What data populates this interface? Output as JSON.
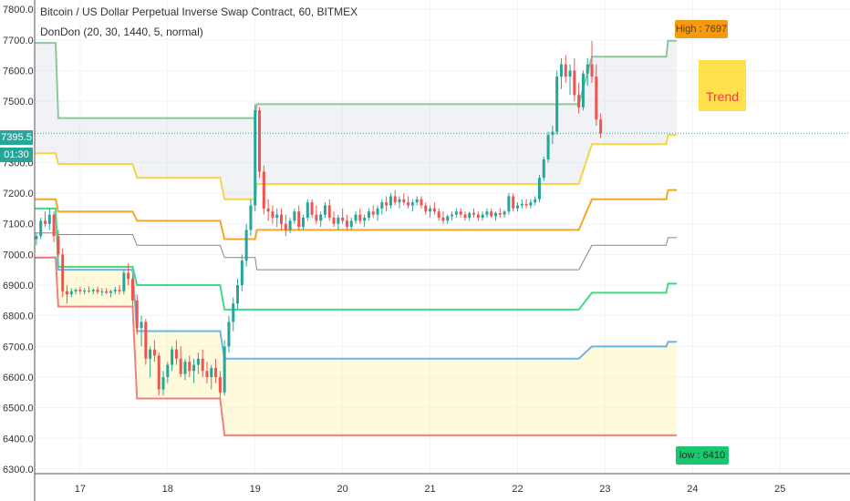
{
  "header": {
    "title": "Bitcoin / US Dollar Perpetual Inverse Swap Contract, 60, BITMEX",
    "indicator": "DonDon (20, 30, 1440, 5, normal)"
  },
  "annotations": {
    "high_label": "High : 7697",
    "low_label": "low : 6410",
    "trend_label": "Trend"
  },
  "price_tag": "7395.5",
  "time_tag": "01:30",
  "colors": {
    "up": "#26a69a",
    "down": "#ef5350",
    "high_band": "#8fc79b",
    "low_band": "#f08080",
    "band_yellow": "#f5d547",
    "band_orange": "#f5a623",
    "band_green": "#3ddc84",
    "band_blue": "#6bb5e0",
    "mid_gray": "#888888",
    "last_price_line": "#26a69a"
  },
  "chart_data": {
    "type": "candlestick",
    "y_ticks": [
      "7800.0",
      "7700.0",
      "7600.0",
      "7500.0",
      "7300.0",
      "7200.0",
      "7100.0",
      "7000.0",
      "6900.0",
      "6800.0",
      "6700.0",
      "6600.0",
      "6500.0",
      "6400.0",
      "6300.0"
    ],
    "x_ticks": [
      "17",
      "18",
      "19",
      "20",
      "21",
      "22",
      "23",
      "24",
      "25"
    ],
    "x_tick_values": [
      17,
      18,
      19,
      20,
      21,
      22,
      23,
      24,
      25
    ],
    "ylim": [
      6285,
      7830
    ],
    "xlim": [
      16.48,
      25.8
    ],
    "last_price": 7395.5,
    "high": 7697,
    "low": 6410,
    "bands": [
      {
        "name": "outer_high",
        "color": "#8fc79b",
        "points": [
          [
            16.48,
            7690
          ],
          [
            16.72,
            7690
          ],
          [
            16.75,
            7445
          ],
          [
            19.0,
            7445
          ],
          [
            19.02,
            7490
          ],
          [
            22.7,
            7490
          ],
          [
            22.85,
            7645
          ],
          [
            23.7,
            7645
          ],
          [
            23.72,
            7697
          ],
          [
            23.82,
            7697
          ]
        ]
      },
      {
        "name": "yellow",
        "color": "#f5d547",
        "points": [
          [
            16.48,
            7330
          ],
          [
            16.72,
            7330
          ],
          [
            16.75,
            7295
          ],
          [
            17.6,
            7295
          ],
          [
            17.65,
            7250
          ],
          [
            18.6,
            7250
          ],
          [
            18.65,
            7180
          ],
          [
            19.0,
            7180
          ],
          [
            19.02,
            7230
          ],
          [
            22.7,
            7230
          ],
          [
            22.85,
            7360
          ],
          [
            23.7,
            7360
          ],
          [
            23.72,
            7390
          ],
          [
            23.82,
            7390
          ]
        ]
      },
      {
        "name": "orange",
        "color": "#f5a623",
        "points": [
          [
            16.48,
            7180
          ],
          [
            16.72,
            7180
          ],
          [
            16.75,
            7140
          ],
          [
            17.6,
            7140
          ],
          [
            17.65,
            7110
          ],
          [
            18.6,
            7110
          ],
          [
            18.65,
            7050
          ],
          [
            19.0,
            7050
          ],
          [
            19.02,
            7080
          ],
          [
            22.7,
            7080
          ],
          [
            22.85,
            7180
          ],
          [
            23.7,
            7180
          ],
          [
            23.72,
            7210
          ],
          [
            23.82,
            7210
          ]
        ]
      },
      {
        "name": "gray",
        "color": "#888888",
        "points": [
          [
            16.48,
            7070
          ],
          [
            16.72,
            7070
          ],
          [
            16.75,
            7065
          ],
          [
            17.6,
            7065
          ],
          [
            17.65,
            7030
          ],
          [
            18.6,
            7030
          ],
          [
            18.65,
            6990
          ],
          [
            19.0,
            6990
          ],
          [
            19.02,
            6950
          ],
          [
            22.7,
            6950
          ],
          [
            22.85,
            7030
          ],
          [
            23.7,
            7030
          ],
          [
            23.72,
            7055
          ],
          [
            23.82,
            7055
          ]
        ]
      },
      {
        "name": "green",
        "color": "#3ddc84",
        "points": [
          [
            16.48,
            7150
          ],
          [
            16.72,
            7150
          ],
          [
            16.75,
            6960
          ],
          [
            17.6,
            6960
          ],
          [
            17.65,
            6900
          ],
          [
            18.6,
            6900
          ],
          [
            18.65,
            6820
          ],
          [
            19.0,
            6820
          ],
          [
            19.02,
            6820
          ],
          [
            22.7,
            6820
          ],
          [
            22.85,
            6875
          ],
          [
            23.7,
            6875
          ],
          [
            23.72,
            6905
          ],
          [
            23.82,
            6905
          ]
        ]
      },
      {
        "name": "blue",
        "color": "#6bb5e0",
        "points": [
          [
            16.48,
            6990
          ],
          [
            16.72,
            6990
          ],
          [
            16.75,
            6950
          ],
          [
            17.6,
            6950
          ],
          [
            17.65,
            6750
          ],
          [
            18.6,
            6750
          ],
          [
            18.65,
            6660
          ],
          [
            19.0,
            6660
          ],
          [
            19.02,
            6660
          ],
          [
            22.7,
            6660
          ],
          [
            22.85,
            6700
          ],
          [
            23.7,
            6700
          ],
          [
            23.72,
            6715
          ],
          [
            23.82,
            6715
          ]
        ]
      },
      {
        "name": "outer_low",
        "color": "#f08080",
        "points": [
          [
            16.48,
            6990
          ],
          [
            16.72,
            6990
          ],
          [
            16.75,
            6830
          ],
          [
            17.6,
            6830
          ],
          [
            17.65,
            6530
          ],
          [
            18.6,
            6530
          ],
          [
            18.65,
            6410
          ],
          [
            23.82,
            6410
          ]
        ]
      }
    ],
    "candles": [
      [
        16.5,
        7050,
        7070,
        7030,
        7060
      ],
      [
        16.55,
        7060,
        7120,
        7050,
        7110
      ],
      [
        16.6,
        7110,
        7140,
        7090,
        7100
      ],
      [
        16.65,
        7100,
        7150,
        7080,
        7130
      ],
      [
        16.7,
        7130,
        7140,
        7040,
        7060
      ],
      [
        16.75,
        7060,
        7080,
        6990,
        7000
      ],
      [
        16.8,
        7000,
        7020,
        6860,
        6880
      ],
      [
        16.85,
        6880,
        6900,
        6840,
        6870
      ],
      [
        16.9,
        6870,
        6890,
        6860,
        6880
      ],
      [
        16.95,
        6880,
        6890,
        6870,
        6885
      ],
      [
        17.0,
        6885,
        6895,
        6870,
        6880
      ],
      [
        17.05,
        6880,
        6890,
        6870,
        6882
      ],
      [
        17.1,
        6882,
        6895,
        6875,
        6880
      ],
      [
        17.15,
        6880,
        6890,
        6870,
        6885
      ],
      [
        17.2,
        6885,
        6895,
        6870,
        6878
      ],
      [
        17.25,
        6878,
        6890,
        6865,
        6880
      ],
      [
        17.3,
        6880,
        6890,
        6870,
        6875
      ],
      [
        17.35,
        6875,
        6885,
        6860,
        6880
      ],
      [
        17.4,
        6880,
        6895,
        6870,
        6885
      ],
      [
        17.45,
        6885,
        6900,
        6870,
        6880
      ],
      [
        17.5,
        6880,
        6950,
        6870,
        6940
      ],
      [
        17.55,
        6940,
        6970,
        6900,
        6920
      ],
      [
        17.6,
        6920,
        6930,
        6830,
        6850
      ],
      [
        17.65,
        6850,
        6870,
        6740,
        6760
      ],
      [
        17.7,
        6760,
        6800,
        6700,
        6780
      ],
      [
        17.75,
        6780,
        6790,
        6640,
        6660
      ],
      [
        17.8,
        6660,
        6700,
        6600,
        6690
      ],
      [
        17.85,
        6690,
        6720,
        6650,
        6670
      ],
      [
        17.9,
        6670,
        6680,
        6540,
        6560
      ],
      [
        17.95,
        6560,
        6620,
        6540,
        6600
      ],
      [
        18.0,
        6600,
        6650,
        6580,
        6640
      ],
      [
        18.05,
        6640,
        6700,
        6620,
        6690
      ],
      [
        18.1,
        6690,
        6720,
        6640,
        6660
      ],
      [
        18.15,
        6660,
        6700,
        6600,
        6610
      ],
      [
        18.2,
        6610,
        6660,
        6590,
        6650
      ],
      [
        18.25,
        6650,
        6670,
        6600,
        6620
      ],
      [
        18.3,
        6620,
        6660,
        6580,
        6640
      ],
      [
        18.35,
        6640,
        6680,
        6610,
        6660
      ],
      [
        18.4,
        6660,
        6690,
        6600,
        6620
      ],
      [
        18.45,
        6620,
        6650,
        6580,
        6600
      ],
      [
        18.5,
        6600,
        6640,
        6560,
        6630
      ],
      [
        18.55,
        6630,
        6660,
        6580,
        6600
      ],
      [
        18.6,
        6600,
        6620,
        6530,
        6550
      ],
      [
        18.65,
        6550,
        6720,
        6540,
        6700
      ],
      [
        18.7,
        6700,
        6800,
        6680,
        6780
      ],
      [
        18.75,
        6780,
        6860,
        6750,
        6840
      ],
      [
        18.8,
        6840,
        6920,
        6820,
        6900
      ],
      [
        18.85,
        6900,
        7000,
        6880,
        6980
      ],
      [
        18.9,
        6980,
        7100,
        6960,
        7080
      ],
      [
        18.95,
        7080,
        7180,
        7060,
        7160
      ],
      [
        19.0,
        7160,
        7490,
        7140,
        7470
      ],
      [
        19.05,
        7470,
        7480,
        7250,
        7270
      ],
      [
        19.1,
        7270,
        7290,
        7130,
        7150
      ],
      [
        19.15,
        7150,
        7180,
        7110,
        7140
      ],
      [
        19.2,
        7140,
        7160,
        7100,
        7120
      ],
      [
        19.25,
        7120,
        7150,
        7090,
        7130
      ],
      [
        19.3,
        7130,
        7150,
        7080,
        7100
      ],
      [
        19.35,
        7100,
        7130,
        7060,
        7080
      ],
      [
        19.4,
        7080,
        7120,
        7070,
        7110
      ],
      [
        19.45,
        7110,
        7150,
        7100,
        7140
      ],
      [
        19.5,
        7140,
        7160,
        7080,
        7090
      ],
      [
        19.55,
        7090,
        7130,
        7080,
        7120
      ],
      [
        19.6,
        7120,
        7180,
        7110,
        7170
      ],
      [
        19.65,
        7170,
        7180,
        7120,
        7130
      ],
      [
        19.7,
        7130,
        7160,
        7100,
        7110
      ],
      [
        19.75,
        7110,
        7140,
        7090,
        7130
      ],
      [
        19.8,
        7130,
        7170,
        7120,
        7160
      ],
      [
        19.85,
        7160,
        7180,
        7110,
        7120
      ],
      [
        19.9,
        7120,
        7140,
        7090,
        7100
      ],
      [
        19.95,
        7100,
        7130,
        7080,
        7120
      ],
      [
        20.0,
        7120,
        7150,
        7100,
        7110
      ],
      [
        20.05,
        7110,
        7130,
        7080,
        7090
      ],
      [
        20.1,
        7090,
        7120,
        7080,
        7110
      ],
      [
        20.15,
        7110,
        7140,
        7100,
        7130
      ],
      [
        20.2,
        7130,
        7150,
        7100,
        7110
      ],
      [
        20.25,
        7110,
        7130,
        7090,
        7120
      ],
      [
        20.3,
        7120,
        7150,
        7110,
        7140
      ],
      [
        20.35,
        7140,
        7160,
        7120,
        7130
      ],
      [
        20.4,
        7130,
        7160,
        7110,
        7150
      ],
      [
        20.45,
        7150,
        7180,
        7130,
        7170
      ],
      [
        20.5,
        7170,
        7190,
        7140,
        7160
      ],
      [
        20.55,
        7160,
        7200,
        7150,
        7190
      ],
      [
        20.6,
        7190,
        7210,
        7160,
        7170
      ],
      [
        20.65,
        7170,
        7190,
        7150,
        7180
      ],
      [
        20.7,
        7180,
        7200,
        7160,
        7170
      ],
      [
        20.75,
        7170,
        7190,
        7150,
        7160
      ],
      [
        20.8,
        7160,
        7180,
        7140,
        7170
      ],
      [
        20.85,
        7170,
        7190,
        7160,
        7180
      ],
      [
        20.9,
        7180,
        7190,
        7150,
        7160
      ],
      [
        20.95,
        7160,
        7170,
        7130,
        7140
      ],
      [
        21.0,
        7140,
        7160,
        7120,
        7150
      ],
      [
        21.05,
        7150,
        7170,
        7130,
        7140
      ],
      [
        21.1,
        7140,
        7150,
        7110,
        7120
      ],
      [
        21.15,
        7120,
        7140,
        7100,
        7110
      ],
      [
        21.2,
        7110,
        7130,
        7100,
        7125
      ],
      [
        21.25,
        7125,
        7140,
        7110,
        7130
      ],
      [
        21.3,
        7130,
        7150,
        7120,
        7140
      ],
      [
        21.35,
        7140,
        7150,
        7120,
        7130
      ],
      [
        21.4,
        7130,
        7140,
        7110,
        7120
      ],
      [
        21.45,
        7120,
        7140,
        7110,
        7135
      ],
      [
        21.5,
        7135,
        7150,
        7120,
        7130
      ],
      [
        21.55,
        7130,
        7140,
        7110,
        7120
      ],
      [
        21.6,
        7120,
        7140,
        7110,
        7130
      ],
      [
        21.65,
        7130,
        7150,
        7120,
        7140
      ],
      [
        21.7,
        7140,
        7150,
        7120,
        7125
      ],
      [
        21.75,
        7125,
        7140,
        7110,
        7135
      ],
      [
        21.8,
        7135,
        7150,
        7120,
        7130
      ],
      [
        21.85,
        7130,
        7145,
        7120,
        7140
      ],
      [
        21.9,
        7140,
        7200,
        7130,
        7190
      ],
      [
        21.95,
        7190,
        7200,
        7140,
        7150
      ],
      [
        22.0,
        7150,
        7170,
        7140,
        7160
      ],
      [
        22.05,
        7160,
        7180,
        7150,
        7165
      ],
      [
        22.1,
        7165,
        7180,
        7150,
        7160
      ],
      [
        22.15,
        7160,
        7180,
        7150,
        7170
      ],
      [
        22.2,
        7170,
        7190,
        7160,
        7180
      ],
      [
        22.25,
        7180,
        7260,
        7170,
        7250
      ],
      [
        22.3,
        7250,
        7320,
        7240,
        7310
      ],
      [
        22.35,
        7310,
        7400,
        7300,
        7390
      ],
      [
        22.4,
        7390,
        7420,
        7360,
        7400
      ],
      [
        22.45,
        7400,
        7600,
        7390,
        7580
      ],
      [
        22.5,
        7580,
        7640,
        7540,
        7620
      ],
      [
        22.55,
        7620,
        7650,
        7560,
        7580
      ],
      [
        22.6,
        7580,
        7620,
        7520,
        7600
      ],
      [
        22.65,
        7600,
        7640,
        7500,
        7520
      ],
      [
        22.7,
        7520,
        7560,
        7460,
        7480
      ],
      [
        22.75,
        7480,
        7600,
        7470,
        7590
      ],
      [
        22.8,
        7590,
        7640,
        7550,
        7620
      ],
      [
        22.85,
        7620,
        7697,
        7560,
        7580
      ],
      [
        22.9,
        7580,
        7620,
        7420,
        7440
      ],
      [
        22.95,
        7440,
        7460,
        7380,
        7395
      ]
    ]
  }
}
